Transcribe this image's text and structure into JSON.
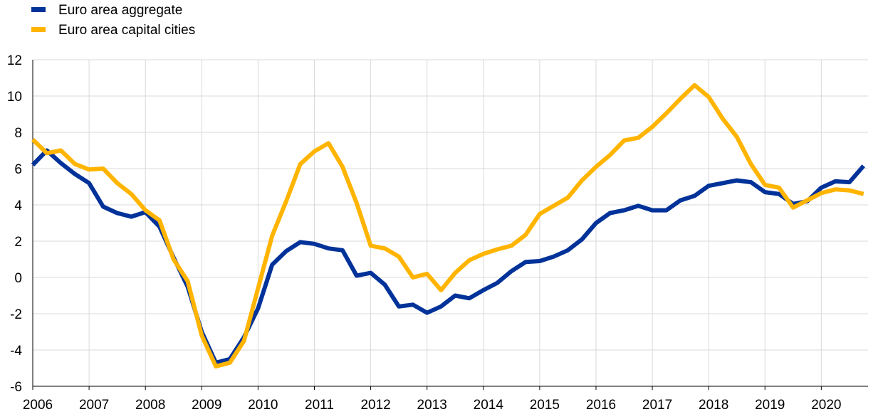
{
  "chart_data": {
    "type": "line",
    "title": "",
    "xlabel": "",
    "ylabel": "",
    "ylim": [
      -6,
      12
    ],
    "yticks": [
      -6,
      -4,
      -2,
      0,
      2,
      4,
      6,
      8,
      10,
      12
    ],
    "xlim": [
      2006.0,
      2020.83
    ],
    "xticks": [
      2006,
      2007,
      2008,
      2009,
      2010,
      2011,
      2012,
      2013,
      2014,
      2015,
      2016,
      2017,
      2018,
      2019,
      2020
    ],
    "xtick_labels": [
      "2006",
      "2007",
      "2008",
      "2009",
      "2010",
      "2011",
      "2012",
      "2013",
      "2014",
      "2015",
      "2016",
      "2017",
      "2018",
      "2019",
      "2020"
    ],
    "grid": true,
    "legend_position": "top-left",
    "x": [
      2006.0,
      2006.25,
      2006.5,
      2006.75,
      2007.0,
      2007.25,
      2007.5,
      2007.75,
      2008.0,
      2008.25,
      2008.5,
      2008.75,
      2009.0,
      2009.25,
      2009.5,
      2009.75,
      2010.0,
      2010.25,
      2010.5,
      2010.75,
      2011.0,
      2011.25,
      2011.5,
      2011.75,
      2012.0,
      2012.25,
      2012.5,
      2012.75,
      2013.0,
      2013.25,
      2013.5,
      2013.75,
      2014.0,
      2014.25,
      2014.5,
      2014.75,
      2015.0,
      2015.25,
      2015.5,
      2015.75,
      2016.0,
      2016.25,
      2016.5,
      2016.75,
      2017.0,
      2017.25,
      2017.5,
      2017.75,
      2018.0,
      2018.25,
      2018.5,
      2018.75,
      2019.0,
      2019.25,
      2019.5,
      2019.75,
      2020.0,
      2020.25,
      2020.5,
      2020.75
    ],
    "series": [
      {
        "name": "Euro area aggregate",
        "color": "#003299",
        "values": [
          6.2,
          7.0,
          6.3,
          5.7,
          5.2,
          3.9,
          3.55,
          3.35,
          3.6,
          2.8,
          1.1,
          -0.5,
          -3.0,
          -4.7,
          -4.5,
          -3.3,
          -1.7,
          0.7,
          1.45,
          1.95,
          1.85,
          1.6,
          1.5,
          0.1,
          0.25,
          -0.4,
          -1.6,
          -1.5,
          -1.95,
          -1.6,
          -1.0,
          -1.15,
          -0.7,
          -0.3,
          0.35,
          0.85,
          0.9,
          1.15,
          1.5,
          2.1,
          3.0,
          3.55,
          3.7,
          3.95,
          3.7,
          3.7,
          4.25,
          4.5,
          5.05,
          5.2,
          5.35,
          5.25,
          4.7,
          4.6,
          4.05,
          4.2,
          4.95,
          5.3,
          5.25,
          6.15
        ]
      },
      {
        "name": "Euro area capital cities",
        "color": "#FFB400",
        "values": [
          7.6,
          6.85,
          7.0,
          6.25,
          5.95,
          6.0,
          5.2,
          4.6,
          3.7,
          3.15,
          1.0,
          -0.2,
          -3.2,
          -4.9,
          -4.7,
          -3.5,
          -0.6,
          2.3,
          4.2,
          6.25,
          6.95,
          7.4,
          6.1,
          4.1,
          1.75,
          1.6,
          1.15,
          0.0,
          0.2,
          -0.7,
          0.25,
          0.95,
          1.3,
          1.55,
          1.75,
          2.35,
          3.5,
          3.95,
          4.4,
          5.35,
          6.1,
          6.75,
          7.55,
          7.7,
          8.3,
          9.05,
          9.85,
          10.6,
          9.95,
          8.75,
          7.75,
          6.25,
          5.1,
          4.95,
          3.85,
          4.25,
          4.65,
          4.85,
          4.8,
          4.6
        ]
      }
    ]
  }
}
